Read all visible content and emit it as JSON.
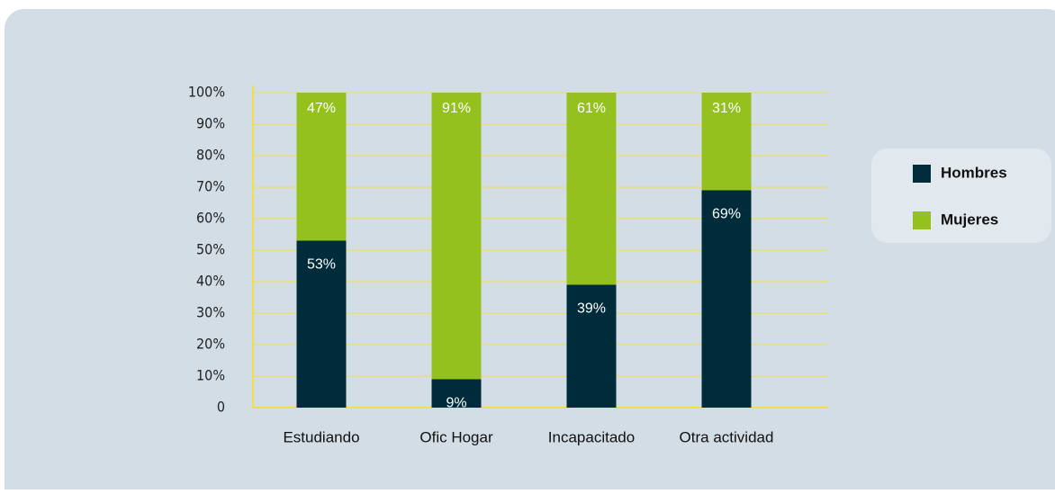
{
  "chart_data": {
    "type": "stacked_bar",
    "categories": [
      "Estudiando",
      "Ofic Hogar",
      "Incapacitado",
      "Otra actividad"
    ],
    "series": [
      {
        "name": "Hombres",
        "color": "#002b3a",
        "values": [
          53,
          9,
          39,
          69
        ],
        "value_labels": [
          "53%",
          "9%",
          "39%",
          "69%"
        ]
      },
      {
        "name": "Mujeres",
        "color": "#95c11f",
        "values": [
          47,
          91,
          61,
          31
        ],
        "value_labels": [
          "47%",
          "91%",
          "61%",
          "31%"
        ]
      }
    ],
    "ylim": [
      0,
      100
    ],
    "yticks": [
      0,
      {
        "value": 10,
        "label": "10%"
      },
      {
        "value": 20,
        "label": "20%"
      },
      {
        "value": 30,
        "label": "30%"
      },
      {
        "value": 40,
        "label": "40%"
      },
      {
        "value": 50,
        "label": "50%"
      },
      {
        "value": 60,
        "label": "60%"
      },
      {
        "value": 70,
        "label": "70%"
      },
      {
        "value": 80,
        "label": "80%"
      },
      {
        "value": 90,
        "label": "90%"
      },
      {
        "value": 100,
        "label": "100%"
      }
    ],
    "grid": true,
    "grid_color": "#f0e040",
    "legend": "right"
  }
}
